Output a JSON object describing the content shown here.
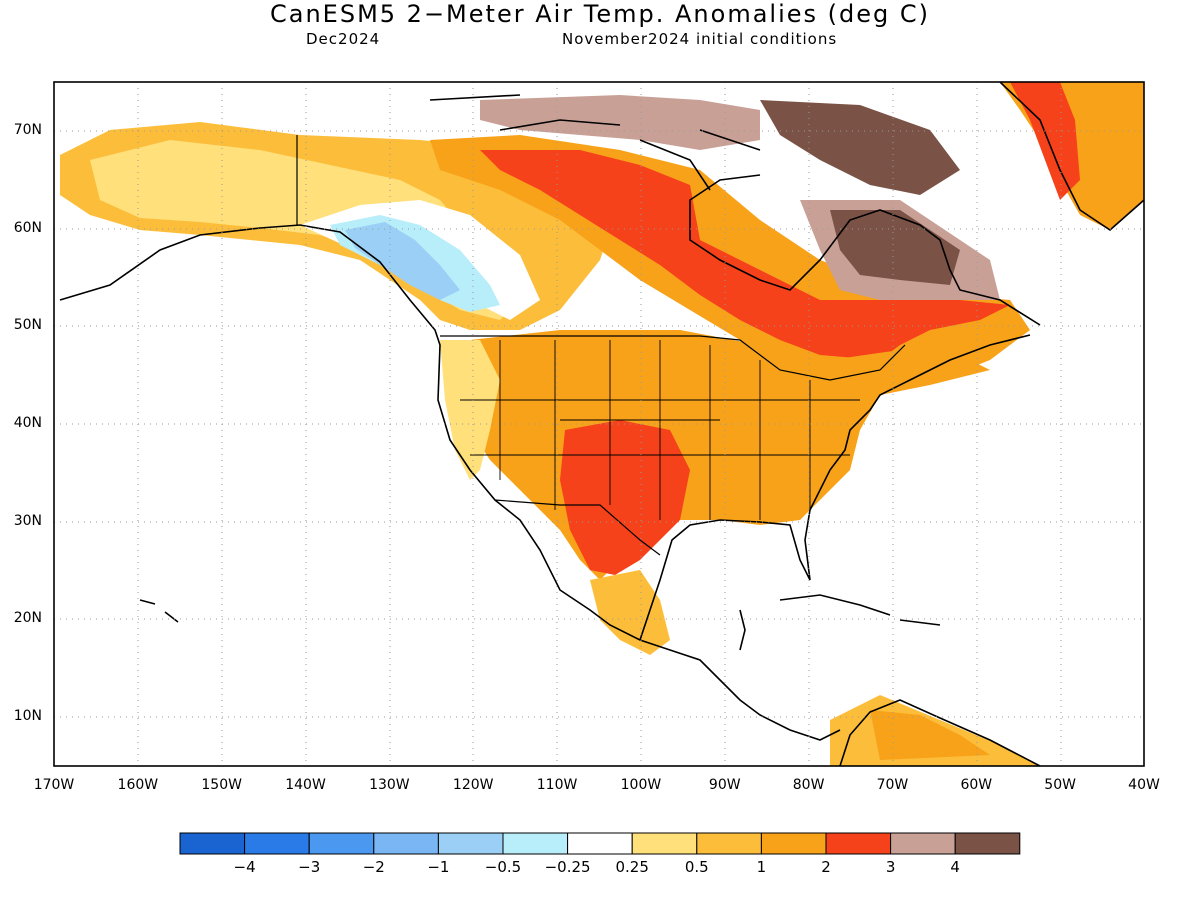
{
  "title": "CanESM5 2−Meter Air Temp. Anomalies (deg C)",
  "subtitle_left": "Dec2024",
  "subtitle_right": "November2024 initial conditions",
  "map": {
    "lon_range": [
      -170,
      -40
    ],
    "lat_range": [
      5,
      75
    ],
    "lat_labels": [
      "70N",
      "60N",
      "50N",
      "40N",
      "30N",
      "20N",
      "10N"
    ],
    "lon_labels": [
      "170W",
      "160W",
      "150W",
      "140W",
      "130W",
      "120W",
      "110W",
      "100W",
      "90W",
      "80W",
      "70W",
      "60W",
      "50W",
      "40W"
    ],
    "grid": true
  },
  "colorbar": {
    "colors": [
      "#1a64d2",
      "#2a7be8",
      "#4a98f0",
      "#7ab6f4",
      "#9ccff6",
      "#b8eefa",
      "#ffffff",
      "#ffe07a",
      "#fcbe3a",
      "#f8a21a",
      "#f5421a",
      "#c8a096",
      "#7a5246"
    ],
    "labels": [
      "−4",
      "−3",
      "−2",
      "−1",
      "−0.5",
      "−0.25",
      "0.25",
      "0.5",
      "1",
      "2",
      "3",
      "4"
    ]
  }
}
